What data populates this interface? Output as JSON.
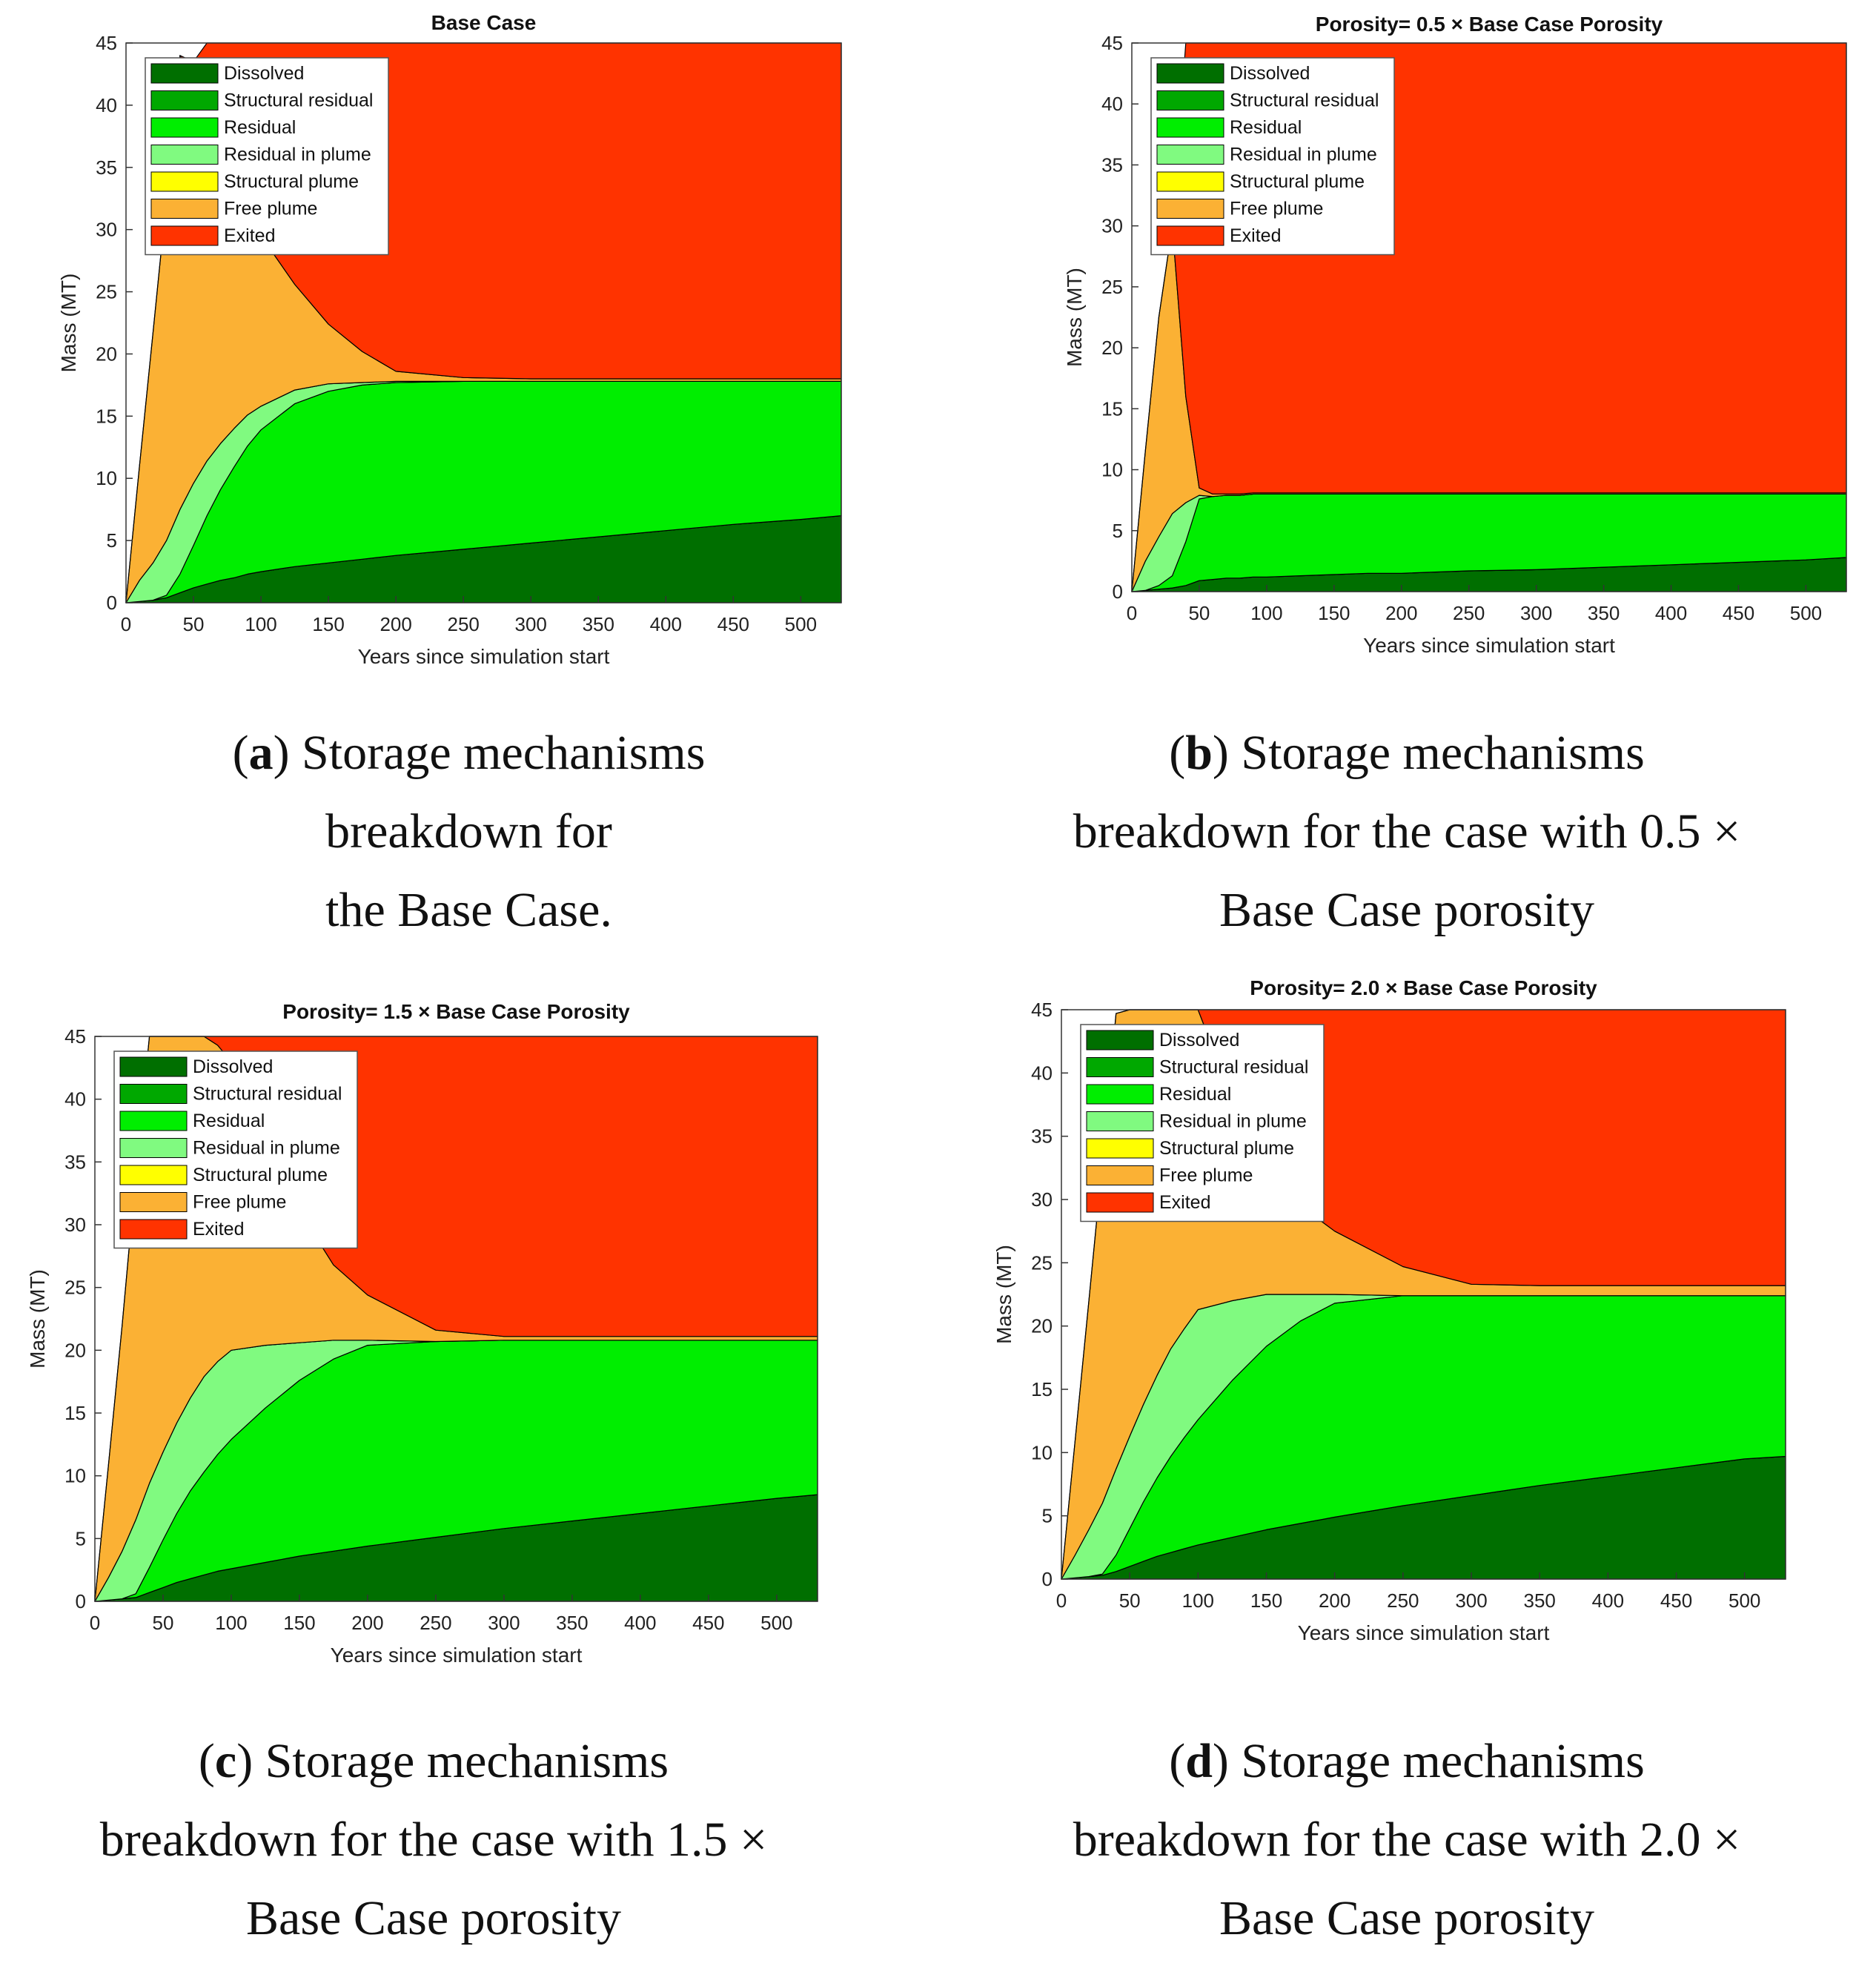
{
  "colors": {
    "Dissolved": "#006f00",
    "Structural residual": "#00a800",
    "Residual": "#00ee00",
    "Residual in plume": "#80fa80",
    "Structural plume": "#ffff00",
    "Free plume": "#fbb134",
    "Exited": "#ff3300"
  },
  "legend": [
    "Dissolved",
    "Structural residual",
    "Residual",
    "Residual in plume",
    "Structural plume",
    "Free plume",
    "Exited"
  ],
  "axes": {
    "xlabel": "Years since simulation start",
    "ylabel": "Mass (MT)",
    "xticks": [
      0,
      50,
      100,
      150,
      200,
      250,
      300,
      350,
      400,
      450,
      500
    ],
    "yticks": [
      0,
      5,
      10,
      15,
      20,
      25,
      30,
      35,
      40,
      45
    ],
    "xlim": [
      0,
      530
    ],
    "ylim": [
      0,
      45
    ]
  },
  "captions": [
    {
      "letter": "a",
      "line1": ") Storage mechanisms",
      "line2": "breakdown for",
      "line3": "the Base Case."
    },
    {
      "letter": "b",
      "line1": ") Storage mechanisms",
      "line2": "breakdown for the case with 0.5 ×",
      "line3": "Base Case porosity"
    },
    {
      "letter": "c",
      "line1": ") Storage mechanisms",
      "line2": "breakdown for the case with 1.5 ×",
      "line3": "Base Case porosity"
    },
    {
      "letter": "d",
      "line1": ") Storage mechanisms",
      "line2": "breakdown for the case with 2.0 ×",
      "line3": "Base Case porosity"
    }
  ],
  "chart_data": [
    {
      "type": "area",
      "title": "Base Case",
      "xlabel": "Years since simulation start",
      "ylabel": "Mass (MT)",
      "xlim": [
        0,
        530
      ],
      "ylim": [
        0,
        45
      ],
      "legend_position": "top-left",
      "x": [
        0,
        10,
        20,
        30,
        40,
        50,
        60,
        70,
        80,
        90,
        100,
        125,
        150,
        175,
        200,
        250,
        300,
        350,
        400,
        450,
        500,
        530
      ],
      "series": [
        {
          "name": "Dissolved",
          "values": [
            0,
            0.1,
            0.2,
            0.4,
            0.8,
            1.2,
            1.5,
            1.8,
            2.0,
            2.3,
            2.5,
            2.9,
            3.2,
            3.5,
            3.8,
            4.3,
            4.8,
            5.3,
            5.8,
            6.3,
            6.7,
            7.0
          ]
        },
        {
          "name": "Structural residual",
          "values": [
            0,
            0,
            0,
            0,
            0,
            0,
            0,
            0,
            0,
            0,
            0,
            0,
            0,
            0,
            0,
            0,
            0,
            0,
            0,
            0,
            0,
            0
          ]
        },
        {
          "name": "Residual",
          "values": [
            0,
            0,
            0,
            0.2,
            1.5,
            3.4,
            5.5,
            7.3,
            8.9,
            10.3,
            11.4,
            13.1,
            13.8,
            14.0,
            13.9,
            13.5,
            13.0,
            12.5,
            12.0,
            11.5,
            11.1,
            10.8
          ]
        },
        {
          "name": "Residual in plume",
          "values": [
            0,
            1.7,
            3.0,
            4.4,
            5.2,
            5.0,
            4.4,
            3.7,
            3.1,
            2.5,
            1.9,
            1.1,
            0.6,
            0.2,
            0.1,
            0,
            0,
            0,
            0,
            0,
            0,
            0
          ]
        },
        {
          "name": "Structural plume",
          "values": [
            0,
            0,
            0,
            0,
            0,
            0,
            0,
            0,
            0,
            0,
            0,
            0,
            0,
            0,
            0,
            0,
            0,
            0,
            0,
            0,
            0,
            0
          ]
        },
        {
          "name": "Free plume",
          "values": [
            0,
            9.2,
            18.5,
            27.5,
            36.5,
            32.4,
            27.6,
            23.0,
            19.7,
            16.4,
            13.7,
            8.5,
            4.8,
            2.5,
            0.8,
            0.3,
            0.2,
            0.2,
            0.2,
            0.2,
            0.2,
            0.2
          ]
        },
        {
          "name": "Exited",
          "values": [
            0,
            0,
            0,
            0,
            0,
            1.5,
            6.0,
            10.2,
            13.3,
            15.5,
            17.5,
            22.4,
            25.6,
            27.3,
            28.4,
            28.9,
            29.0,
            29.0,
            29.0,
            29.0,
            29.0,
            29.0
          ]
        }
      ]
    },
    {
      "type": "area",
      "title": "Porosity= 0.5 × Base Case Porosity",
      "xlabel": "Years since simulation start",
      "ylabel": "Mass (MT)",
      "xlim": [
        0,
        530
      ],
      "ylim": [
        0,
        45
      ],
      "legend_position": "top-left",
      "x": [
        0,
        10,
        20,
        30,
        40,
        50,
        60,
        70,
        80,
        90,
        100,
        125,
        150,
        175,
        200,
        250,
        300,
        350,
        400,
        450,
        500,
        530
      ],
      "series": [
        {
          "name": "Dissolved",
          "values": [
            0,
            0.1,
            0.2,
            0.3,
            0.5,
            0.9,
            1.0,
            1.1,
            1.1,
            1.2,
            1.2,
            1.3,
            1.4,
            1.5,
            1.5,
            1.7,
            1.8,
            2.0,
            2.2,
            2.4,
            2.6,
            2.8
          ]
        },
        {
          "name": "Structural residual",
          "values": [
            0,
            0,
            0,
            0,
            0,
            0,
            0,
            0,
            0,
            0,
            0,
            0,
            0,
            0,
            0,
            0,
            0,
            0,
            0,
            0,
            0,
            0
          ]
        },
        {
          "name": "Residual",
          "values": [
            0,
            0,
            0.3,
            1.0,
            3.6,
            6.7,
            6.8,
            6.8,
            6.8,
            6.8,
            6.8,
            6.7,
            6.6,
            6.5,
            6.5,
            6.3,
            6.2,
            6.0,
            5.8,
            5.6,
            5.4,
            5.2
          ]
        },
        {
          "name": "Residual in plume",
          "values": [
            0,
            2.4,
            4.0,
            5.1,
            3.2,
            0.3,
            0,
            0,
            0,
            0,
            0,
            0,
            0,
            0,
            0,
            0,
            0,
            0,
            0,
            0,
            0,
            0
          ]
        },
        {
          "name": "Structural plume",
          "values": [
            0,
            0,
            0,
            0,
            0,
            0,
            0,
            0,
            0,
            0,
            0,
            0,
            0,
            0,
            0,
            0,
            0,
            0,
            0,
            0,
            0,
            0
          ]
        },
        {
          "name": "Free plume",
          "values": [
            0,
            9.0,
            18.0,
            23.6,
            8.7,
            0.6,
            0.2,
            0.1,
            0.1,
            0.1,
            0.1,
            0.1,
            0.1,
            0.1,
            0.1,
            0.1,
            0.1,
            0.1,
            0.1,
            0.1,
            0.1,
            0.1
          ]
        },
        {
          "name": "Exited",
          "values": [
            0,
            0,
            0,
            0,
            29.0,
            36.5,
            37.0,
            37.0,
            37.0,
            37.0,
            37.0,
            37.0,
            37.0,
            37.0,
            37.0,
            37.0,
            37.0,
            37.0,
            37.0,
            37.0,
            37.0,
            37.0
          ]
        }
      ]
    },
    {
      "type": "area",
      "title": "Porosity= 1.5 × Base Case Porosity",
      "xlabel": "Years since simulation start",
      "ylabel": "Mass (MT)",
      "xlim": [
        0,
        530
      ],
      "ylim": [
        0,
        45
      ],
      "legend_position": "top-left",
      "x": [
        0,
        10,
        20,
        30,
        40,
        50,
        60,
        70,
        80,
        90,
        100,
        125,
        150,
        175,
        200,
        250,
        300,
        350,
        400,
        450,
        500,
        530
      ],
      "series": [
        {
          "name": "Dissolved",
          "values": [
            0,
            0.1,
            0.2,
            0.3,
            0.7,
            1.1,
            1.5,
            1.8,
            2.1,
            2.4,
            2.6,
            3.1,
            3.6,
            4.0,
            4.4,
            5.1,
            5.8,
            6.4,
            7.0,
            7.6,
            8.2,
            8.5
          ]
        },
        {
          "name": "Structural residual",
          "values": [
            0,
            0,
            0,
            0,
            0,
            0,
            0,
            0,
            0,
            0,
            0,
            0,
            0,
            0,
            0,
            0,
            0,
            0,
            0,
            0,
            0,
            0
          ]
        },
        {
          "name": "Residual",
          "values": [
            0,
            0,
            0,
            0.3,
            2.0,
            3.8,
            5.5,
            7.0,
            8.2,
            9.3,
            10.3,
            12.3,
            14.0,
            15.3,
            16.0,
            15.6,
            15.0,
            14.4,
            13.8,
            13.2,
            12.6,
            12.3
          ]
        },
        {
          "name": "Residual in plume",
          "values": [
            0,
            1.8,
            3.8,
            5.9,
            6.7,
            7.0,
            7.2,
            7.4,
            7.6,
            7.4,
            7.1,
            5.0,
            3.0,
            1.5,
            0.4,
            0,
            0,
            0,
            0,
            0,
            0,
            0
          ]
        },
        {
          "name": "Structural plume",
          "values": [
            0,
            0,
            0,
            0,
            0,
            0,
            0,
            0,
            0,
            0,
            0,
            0,
            0,
            0,
            0,
            0,
            0,
            0,
            0,
            0,
            0,
            0
          ]
        },
        {
          "name": "Free plume",
          "values": [
            0,
            9.0,
            18.0,
            27.5,
            35.6,
            33.1,
            30.8,
            29.8,
            27.1,
            25.2,
            23.0,
            17.0,
            10.5,
            6.0,
            3.6,
            0.9,
            0.3,
            0.3,
            0.3,
            0.3,
            0.3,
            0.3
          ]
        },
        {
          "name": "Exited",
          "values": [
            0,
            0,
            0,
            0,
            0,
            0,
            0,
            0,
            0,
            0.7,
            2.0,
            7.6,
            13.9,
            18.2,
            20.6,
            23.4,
            23.9,
            23.9,
            23.9,
            23.9,
            23.9,
            23.9
          ]
        }
      ]
    },
    {
      "type": "area",
      "title": "Porosity= 2.0 × Base Case Porosity",
      "xlabel": "Years since simulation start",
      "ylabel": "Mass (MT)",
      "xlim": [
        0,
        530
      ],
      "ylim": [
        0,
        45
      ],
      "legend_position": "top-left",
      "x": [
        0,
        10,
        20,
        30,
        40,
        50,
        60,
        70,
        80,
        90,
        100,
        125,
        150,
        175,
        200,
        250,
        300,
        350,
        400,
        450,
        500,
        530
      ],
      "series": [
        {
          "name": "Dissolved",
          "values": [
            0,
            0.1,
            0.2,
            0.3,
            0.6,
            1.0,
            1.4,
            1.8,
            2.1,
            2.4,
            2.7,
            3.3,
            3.9,
            4.4,
            4.9,
            5.8,
            6.6,
            7.4,
            8.1,
            8.8,
            9.5,
            9.7
          ]
        },
        {
          "name": "Structural residual",
          "values": [
            0,
            0,
            0,
            0,
            0,
            0,
            0,
            0,
            0,
            0,
            0,
            0,
            0,
            0,
            0,
            0,
            0,
            0,
            0,
            0,
            0,
            0
          ]
        },
        {
          "name": "Residual",
          "values": [
            0,
            0,
            0,
            0.1,
            1.3,
            3.0,
            4.7,
            6.2,
            7.6,
            8.8,
            9.9,
            12.4,
            14.5,
            16.0,
            16.9,
            16.6,
            15.8,
            15.0,
            14.3,
            13.6,
            12.9,
            12.7
          ]
        },
        {
          "name": "Residual in plume",
          "values": [
            0,
            1.8,
            3.7,
            5.6,
            6.8,
            7.3,
            7.7,
            8.1,
            8.5,
            8.6,
            8.7,
            6.3,
            4.1,
            2.1,
            0.7,
            0,
            0,
            0,
            0,
            0,
            0,
            0
          ]
        },
        {
          "name": "Structural plume",
          "values": [
            0,
            0,
            0,
            0,
            0,
            0,
            0,
            0,
            0,
            0,
            0,
            0,
            0,
            0,
            0,
            0,
            0,
            0,
            0,
            0,
            0,
            0
          ]
        },
        {
          "name": "Free plume",
          "values": [
            0,
            9.0,
            18.0,
            27.0,
            36.0,
            33.7,
            31.2,
            28.9,
            26.8,
            25.2,
            23.7,
            16.0,
            10.5,
            7.0,
            5.0,
            2.3,
            0.9,
            0.8,
            0.8,
            0.8,
            0.8,
            0.8
          ]
        },
        {
          "name": "Exited",
          "values": [
            0,
            0,
            0,
            0,
            0,
            0,
            0,
            0,
            0,
            0,
            0,
            7.0,
            12.0,
            15.5,
            17.5,
            20.3,
            21.7,
            21.8,
            21.8,
            21.8,
            21.8,
            21.8
          ]
        }
      ]
    }
  ]
}
